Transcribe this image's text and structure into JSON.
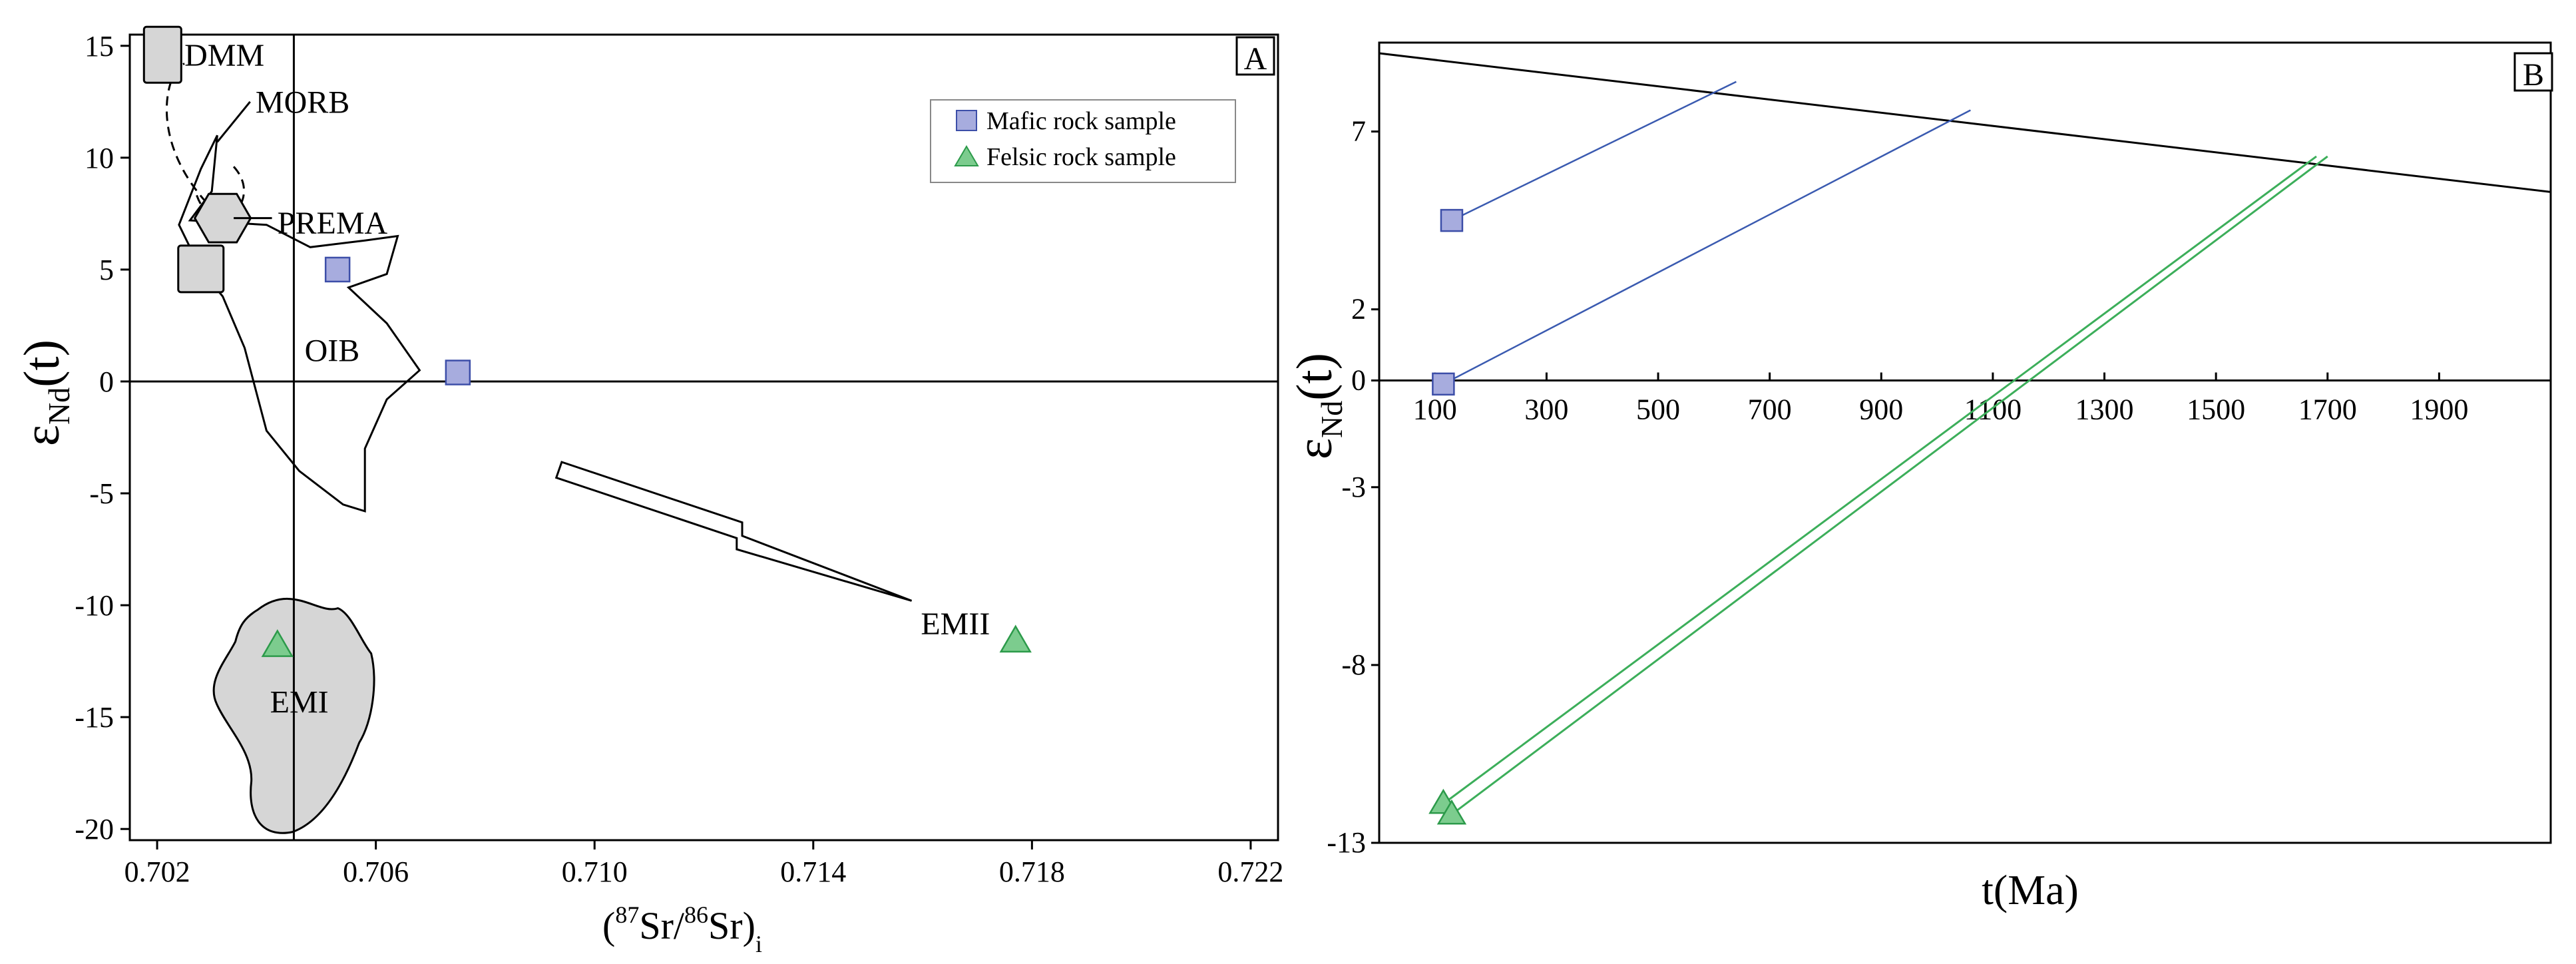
{
  "chart_data": [
    {
      "panel": "A",
      "type": "scatter",
      "xlabel_parts": {
        "open": "(",
        "sup1": "87",
        "mid": "Sr/",
        "sup2": "86",
        "close": "Sr)",
        "sub": "i"
      },
      "ylabel_parts": {
        "main": "ε",
        "sub": "Nd",
        "rest": "(t)"
      },
      "xlim": [
        0.7015,
        0.7225
      ],
      "ylim": [
        -20.5,
        15.5
      ],
      "x_ticks": [
        {
          "v": 0.702,
          "label": "0.702"
        },
        {
          "v": 0.706,
          "label": "0.706"
        },
        {
          "v": 0.71,
          "label": "0.710"
        },
        {
          "v": 0.714,
          "label": "0.714"
        },
        {
          "v": 0.718,
          "label": "0.718"
        },
        {
          "v": 0.722,
          "label": "0.722"
        }
      ],
      "y_ticks": [
        {
          "v": 15,
          "label": "15"
        },
        {
          "v": 10,
          "label": "10"
        },
        {
          "v": 5,
          "label": "5"
        },
        {
          "v": 0,
          "label": "0"
        },
        {
          "v": -5,
          "label": "-5"
        },
        {
          "v": -10,
          "label": "-10"
        },
        {
          "v": -15,
          "label": "-15"
        },
        {
          "v": -20,
          "label": "-20"
        }
      ],
      "reference_lines": {
        "x": 0.7045,
        "y": 0
      },
      "legend": {
        "placement": "top-right",
        "items": [
          {
            "label": "Mafic rock sample",
            "marker": "square",
            "color": "#a7acde"
          },
          {
            "label": "Felsic rock sample",
            "marker": "triangle",
            "color": "#7ccc8e"
          }
        ]
      },
      "series": [
        {
          "name": "Mafic rock sample",
          "marker": "square",
          "points": [
            [
              0.7053,
              5.0
            ],
            [
              0.7075,
              0.4
            ]
          ]
        },
        {
          "name": "Felsic rock sample",
          "marker": "triangle",
          "points": [
            [
              0.7042,
              -11.8
            ],
            [
              0.7177,
              -11.6
            ]
          ]
        }
      ],
      "fields": [
        {
          "label": "DMM",
          "x": 0.7021,
          "y": 14.6,
          "shape": "square"
        },
        {
          "label": "MORB",
          "x": 0.7029,
          "y": 12.2,
          "shape": "dashed-outline"
        },
        {
          "label": "PREMA",
          "x": 0.7032,
          "y": 7.3,
          "shape": "hexagon"
        },
        {
          "label": "",
          "x": 0.7028,
          "y": 5.0,
          "shape": "square"
        },
        {
          "label": "OIB",
          "x": 0.7052,
          "y": 1.5,
          "shape": "outline"
        },
        {
          "label": "EMI",
          "x": 0.7046,
          "y": -14.3,
          "shape": "filled-blob"
        },
        {
          "label": "EMII",
          "x": 0.7163,
          "y": -10.2,
          "shape": "arrow"
        }
      ],
      "panel_label": "A"
    },
    {
      "panel": "B",
      "type": "line",
      "xlabel": "t(Ma)",
      "ylabel_parts": {
        "main": "ε",
        "sub": "Nd",
        "rest": "(t)"
      },
      "xlim": [
        0,
        2100
      ],
      "ylim": [
        -13,
        9.5
      ],
      "x_ticks": [
        {
          "v": 100,
          "label": "100"
        },
        {
          "v": 300,
          "label": "300"
        },
        {
          "v": 500,
          "label": "500"
        },
        {
          "v": 700,
          "label": "700"
        },
        {
          "v": 900,
          "label": "900"
        },
        {
          "v": 1100,
          "label": "1100"
        },
        {
          "v": 1300,
          "label": "1300"
        },
        {
          "v": 1500,
          "label": "1500"
        },
        {
          "v": 1700,
          "label": "1700"
        },
        {
          "v": 1900,
          "label": "1900"
        }
      ],
      "y_ticks": [
        {
          "v": 7,
          "label": "7"
        },
        {
          "v": 2,
          "label": "2"
        },
        {
          "v": 0,
          "label": "0"
        },
        {
          "v": -3,
          "label": "-3"
        },
        {
          "v": -8,
          "label": "-8"
        },
        {
          "v": -13,
          "label": "-13"
        }
      ],
      "depleted_mantle": [
        [
          0,
          9.2
        ],
        [
          2100,
          5.3
        ]
      ],
      "series": [
        {
          "name": "Mafic rock sample",
          "marker": "square",
          "t": 130,
          "value": 4.5,
          "model_age": 640,
          "dm_value": 8.4
        },
        {
          "name": "Mafic rock sample",
          "marker": "square",
          "t": 115,
          "value": -0.1,
          "model_age": 1060,
          "dm_value": 7.6
        },
        {
          "name": "Felsic rock sample",
          "marker": "triangle",
          "t": 115,
          "value": -11.9,
          "model_age": 1680,
          "dm_value": 6.3
        },
        {
          "name": "Felsic rock sample",
          "marker": "triangle",
          "t": 130,
          "value": -12.2,
          "model_age": 1700,
          "dm_value": 6.3
        }
      ],
      "panel_label": "B"
    }
  ],
  "colors": {
    "mafic_fill": "#a7acde",
    "mafic_stroke": "#3c4ea8",
    "felsic_fill": "#7ccc8e",
    "felsic_stroke": "#2c9a4a",
    "field_fill": "#d6d6d6",
    "mafic_line": "#3a5ab0",
    "felsic_line": "#3cae5a"
  }
}
